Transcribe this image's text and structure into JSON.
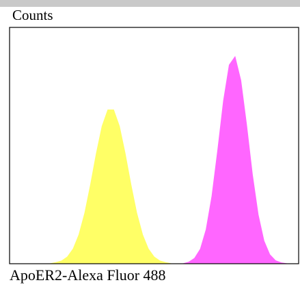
{
  "chart_data": {
    "type": "area",
    "y_label": "Counts",
    "x_label": "ApoER2-Alexa Fluor 488",
    "x": [
      0,
      2,
      4,
      6,
      8,
      10,
      12,
      14,
      16,
      18,
      20,
      22,
      24,
      26,
      28,
      30,
      32,
      34,
      36,
      38,
      40,
      42,
      44,
      46,
      48,
      50,
      52,
      54,
      56,
      58,
      60,
      62,
      64,
      66,
      68,
      70,
      72,
      74,
      76,
      78,
      80,
      82,
      84,
      86,
      88,
      90,
      92,
      94,
      96,
      98,
      100
    ],
    "xlim": [
      0,
      100
    ],
    "ylim": [
      0,
      100
    ],
    "series": [
      {
        "color": "#ffff66",
        "values": [
          0,
          0,
          0,
          0,
          0,
          0,
          0,
          0,
          0.5,
          1.2,
          2.9,
          6.3,
          12.3,
          21.4,
          33.4,
          46.6,
          58.2,
          65.1,
          65.1,
          58.2,
          46.6,
          33.4,
          21.4,
          12.3,
          6.3,
          2.9,
          1.2,
          0.5,
          0,
          0,
          0,
          0,
          0,
          0,
          0,
          0,
          0,
          0,
          0,
          0,
          0,
          0,
          0,
          0,
          0,
          0,
          0,
          0,
          0,
          0,
          0
        ]
      },
      {
        "color": "#ff66ff",
        "values": [
          0,
          0,
          0,
          0,
          0,
          0,
          0,
          0,
          0,
          0,
          0,
          0,
          0,
          0,
          0,
          0,
          0,
          0,
          0,
          0,
          0,
          0,
          0,
          0,
          0,
          0,
          0,
          0,
          0,
          0,
          0,
          0.7,
          2.3,
          6.2,
          14.5,
          28.6,
          48,
          68.9,
          84.1,
          87.6,
          77.6,
          58.7,
          37.8,
          20.8,
          9.7,
          3.9,
          1.3,
          0.4,
          0,
          0,
          0
        ]
      }
    ]
  }
}
